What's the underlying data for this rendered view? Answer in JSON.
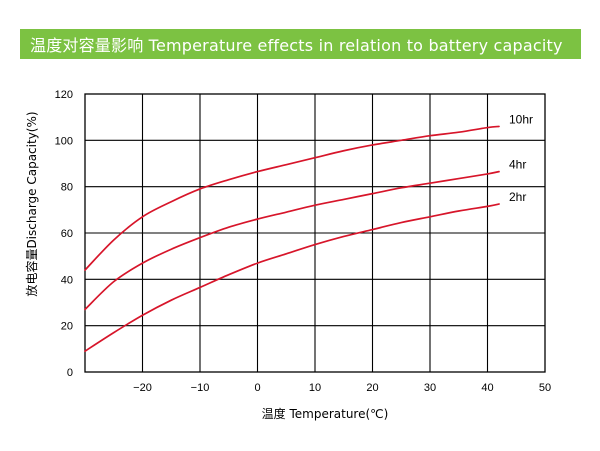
{
  "title": "温度对容量影响 Temperature effects in relation to battery capacity",
  "colors": {
    "banner": "#7CC242",
    "curve": "#D7152A",
    "grid": "#000000"
  },
  "chart_data": {
    "type": "line",
    "title": "温度对容量影响 Temperature effects in relation to battery capacity",
    "xlabel": "温度 Temperature(℃)",
    "ylabel": "放电容量Discharge Capacity(%)",
    "xlim": [
      -30,
      50
    ],
    "ylim": [
      0,
      120
    ],
    "xticks": [
      -20,
      -10,
      0,
      10,
      20,
      30,
      40,
      50
    ],
    "yticks": [
      0,
      20,
      40,
      60,
      80,
      100,
      120
    ],
    "grid": true,
    "series": [
      {
        "name": "10hr",
        "x": [
          -30,
          -25,
          -20,
          -15,
          -10,
          -5,
          0,
          5,
          10,
          15,
          20,
          25,
          30,
          35,
          40,
          42
        ],
        "y": [
          44,
          57,
          67,
          73.5,
          79,
          83,
          86.5,
          89.5,
          92.5,
          95.5,
          98,
          100,
          102,
          103.5,
          105.5,
          106
        ]
      },
      {
        "name": "4hr",
        "x": [
          -30,
          -25,
          -20,
          -15,
          -10,
          -5,
          0,
          5,
          10,
          15,
          20,
          25,
          30,
          35,
          40,
          42
        ],
        "y": [
          27,
          39,
          47,
          53,
          58,
          62.5,
          66,
          69,
          72,
          74.5,
          77,
          79.5,
          81.5,
          83.5,
          85.5,
          86.5
        ]
      },
      {
        "name": "2hr",
        "x": [
          -30,
          -25,
          -20,
          -15,
          -10,
          -5,
          0,
          5,
          10,
          15,
          20,
          25,
          30,
          35,
          40,
          42
        ],
        "y": [
          9,
          17,
          24.5,
          31,
          36.5,
          42,
          47,
          51,
          55,
          58.5,
          61.5,
          64.5,
          67,
          69.5,
          71.5,
          72.5
        ]
      }
    ]
  }
}
